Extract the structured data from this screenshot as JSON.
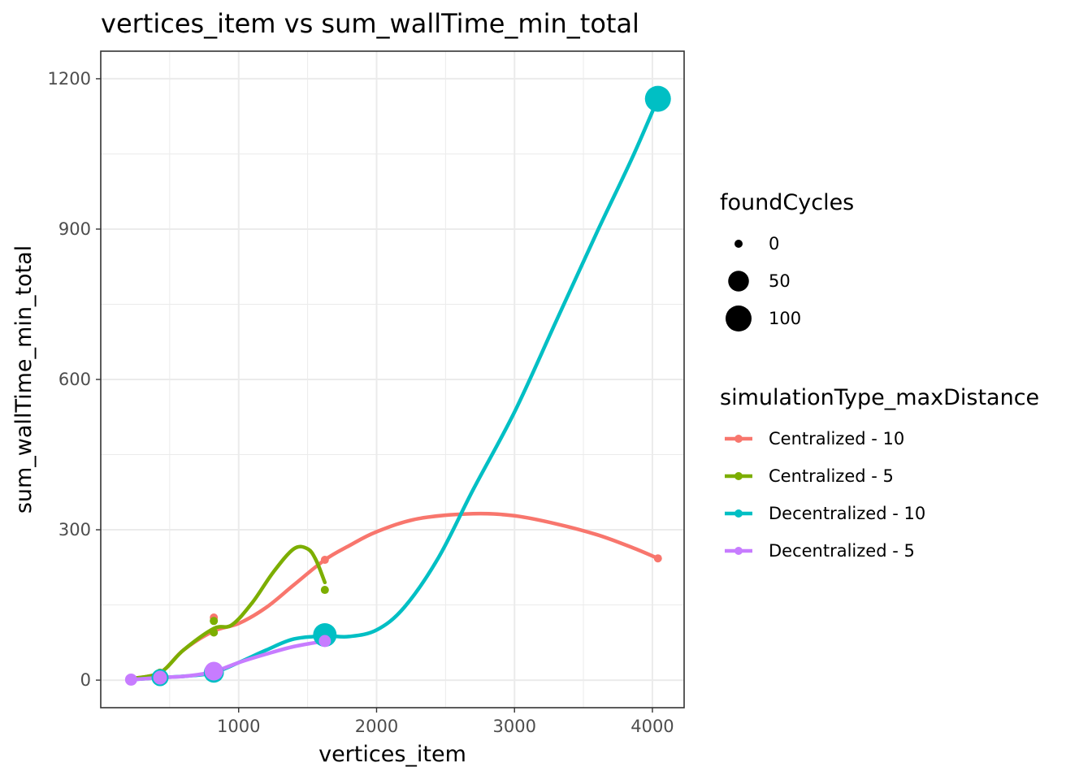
{
  "chart_data": {
    "type": "scatter",
    "title": "vertices_item  vs  sum_wallTime_min_total",
    "xlabel": "vertices_item",
    "ylabel": "sum_wallTime_min_total",
    "xlim": [
      0,
      4230
    ],
    "ylim": [
      -55,
      1255
    ],
    "x_ticks": [
      1000,
      2000,
      3000,
      4000
    ],
    "x_tick_labels": [
      "1000",
      "2000",
      "3000",
      "4000"
    ],
    "y_ticks": [
      0,
      300,
      600,
      900,
      1200
    ],
    "y_tick_labels": [
      "0",
      "300",
      "600",
      "900",
      "1200"
    ],
    "grid": true,
    "legend_placement": "right",
    "size_legend": {
      "title": "foundCycles",
      "entries": [
        {
          "label": "0",
          "value": 0
        },
        {
          "label": "50",
          "value": 50
        },
        {
          "label": "100",
          "value": 100
        }
      ]
    },
    "color_legend": {
      "title": "simulationType_maxDistance"
    },
    "series": [
      {
        "name": "Centralized - 10",
        "color": "#F8766D",
        "points": [
          {
            "x": 220,
            "y": 3,
            "size": 0
          },
          {
            "x": 430,
            "y": 15,
            "size": 0
          },
          {
            "x": 820,
            "y": 125,
            "size": 0
          },
          {
            "x": 1625,
            "y": 240,
            "size": 0
          },
          {
            "x": 4040,
            "y": 243,
            "size": 0
          }
        ],
        "smooth": [
          [
            220,
            3
          ],
          [
            430,
            15
          ],
          [
            600,
            60
          ],
          [
            820,
            98
          ],
          [
            1000,
            113
          ],
          [
            1200,
            145
          ],
          [
            1400,
            190
          ],
          [
            1625,
            240
          ],
          [
            1800,
            268
          ],
          [
            2000,
            296
          ],
          [
            2300,
            322
          ],
          [
            2700,
            332
          ],
          [
            3000,
            328
          ],
          [
            3300,
            312
          ],
          [
            3600,
            290
          ],
          [
            3850,
            265
          ],
          [
            4040,
            243
          ]
        ]
      },
      {
        "name": "Centralized - 5",
        "color": "#7CAE00",
        "points": [
          {
            "x": 220,
            "y": 3,
            "size": 0
          },
          {
            "x": 430,
            "y": 15,
            "size": 0
          },
          {
            "x": 820,
            "y": 95,
            "size": 0
          },
          {
            "x": 820,
            "y": 118,
            "size": 0
          },
          {
            "x": 1625,
            "y": 180,
            "size": 0
          }
        ],
        "smooth": [
          [
            220,
            3
          ],
          [
            430,
            15
          ],
          [
            600,
            60
          ],
          [
            820,
            103
          ],
          [
            950,
            110
          ],
          [
            1100,
            155
          ],
          [
            1250,
            215
          ],
          [
            1400,
            262
          ],
          [
            1500,
            262
          ],
          [
            1560,
            240
          ],
          [
            1625,
            195
          ]
        ]
      },
      {
        "name": "Decentralized - 10",
        "color": "#00BFC4",
        "points": [
          {
            "x": 220,
            "y": 1,
            "size": 0
          },
          {
            "x": 430,
            "y": 5,
            "size": 25
          },
          {
            "x": 820,
            "y": 15,
            "size": 45
          },
          {
            "x": 1625,
            "y": 90,
            "size": 75
          },
          {
            "x": 4040,
            "y": 1160,
            "size": 100
          }
        ],
        "smooth": [
          [
            220,
            1
          ],
          [
            430,
            5
          ],
          [
            620,
            8
          ],
          [
            820,
            15
          ],
          [
            1000,
            35
          ],
          [
            1200,
            60
          ],
          [
            1400,
            82
          ],
          [
            1625,
            88
          ],
          [
            1800,
            87
          ],
          [
            2000,
            100
          ],
          [
            2200,
            145
          ],
          [
            2450,
            245
          ],
          [
            2700,
            380
          ],
          [
            3000,
            535
          ],
          [
            3300,
            715
          ],
          [
            3600,
            895
          ],
          [
            3850,
            1040
          ],
          [
            4040,
            1160
          ]
        ]
      },
      {
        "name": "Decentralized - 5",
        "color": "#C77CFF",
        "points": [
          {
            "x": 220,
            "y": 1,
            "size": 5
          },
          {
            "x": 430,
            "y": 5,
            "size": 10
          },
          {
            "x": 820,
            "y": 18,
            "size": 35
          },
          {
            "x": 1625,
            "y": 78,
            "size": 5
          }
        ],
        "smooth": [
          [
            220,
            1
          ],
          [
            430,
            5
          ],
          [
            620,
            8
          ],
          [
            820,
            17
          ],
          [
            1000,
            35
          ],
          [
            1200,
            52
          ],
          [
            1400,
            67
          ],
          [
            1625,
            78
          ]
        ]
      }
    ]
  }
}
